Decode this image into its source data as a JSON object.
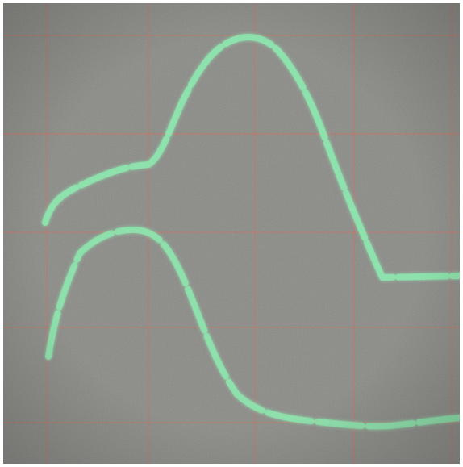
{
  "scene": {
    "subject": "oscilloscope-screen-photo",
    "screen_color": "#8a8a86",
    "grid_color": "#c07a6e",
    "trace_color": "#8ee3ad",
    "graticule": {
      "vertical_lines": 5,
      "horizontal_lines": 5
    },
    "traces": [
      {
        "name_id": "upper-trace",
        "shape": "shoulder-then-peak-then-flat"
      },
      {
        "name_id": "lower-trace",
        "shape": "single-hump-then-flat"
      }
    ]
  }
}
